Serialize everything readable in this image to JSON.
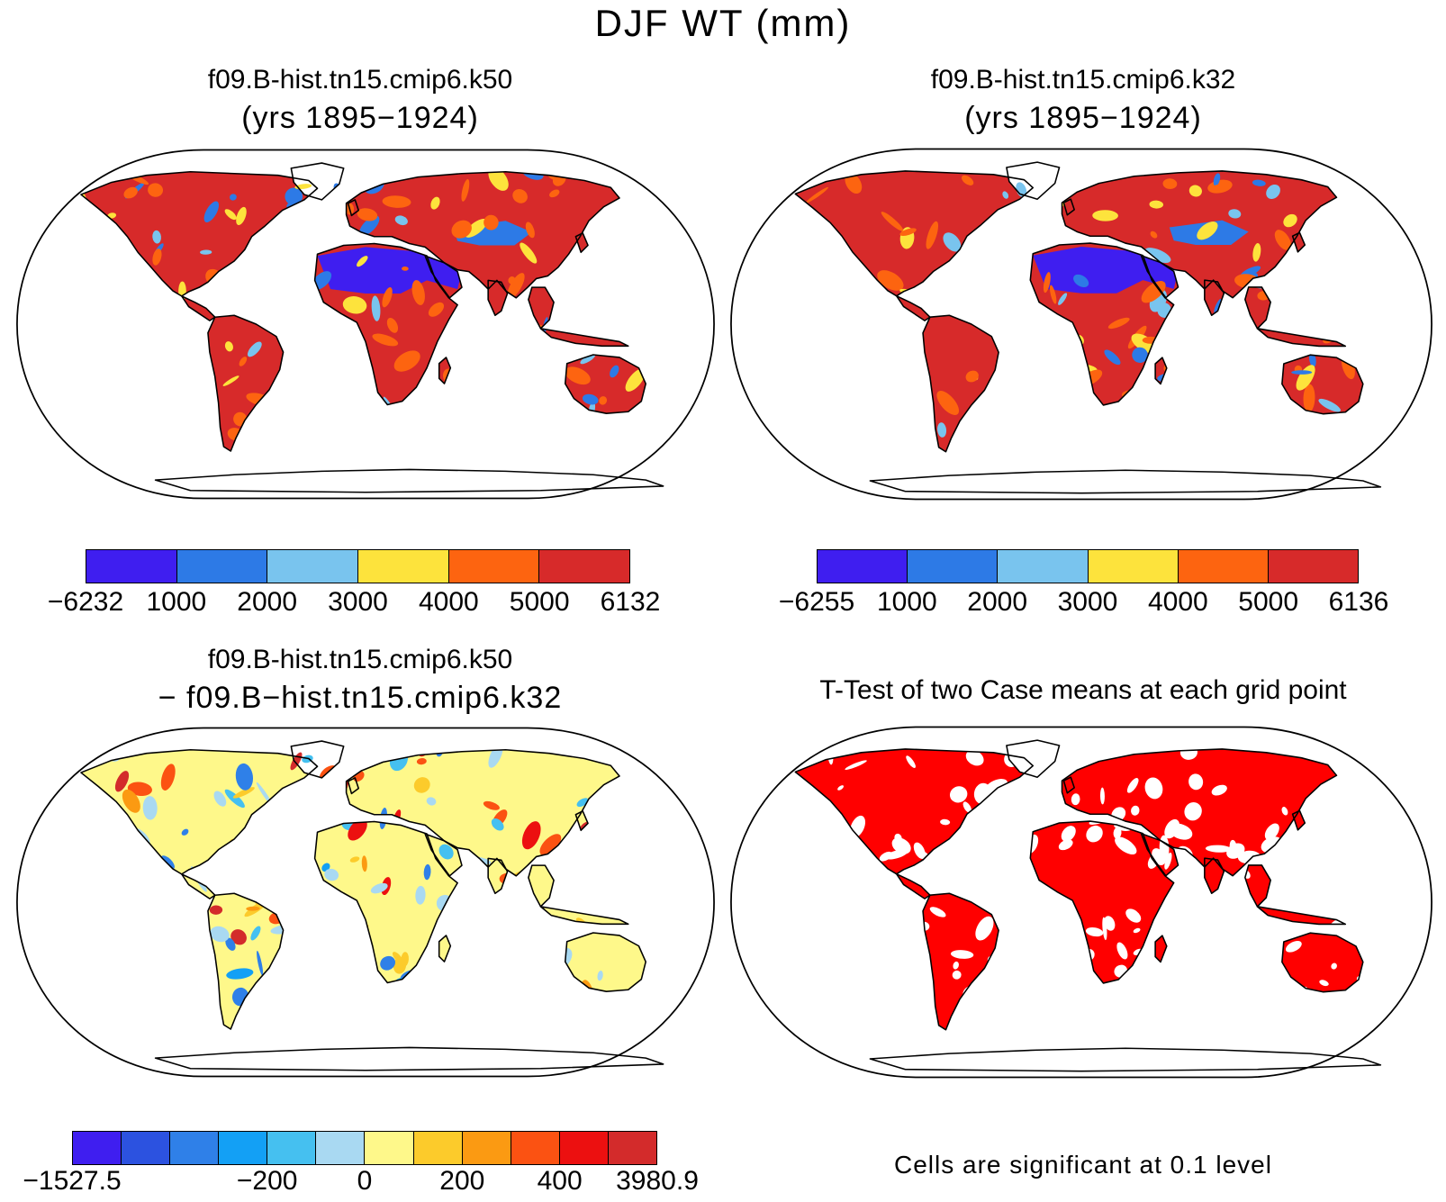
{
  "title": "DJF WT (mm)",
  "panels": [
    {
      "title": "f09.B-hist.tn15.cmip6.k50",
      "subtitle": "(yrs 1895−1924)",
      "colorbar": {
        "colors": [
          "#3f1ef0",
          "#2d7ae6",
          "#79c4ee",
          "#fde33c",
          "#fd6410",
          "#d72a2a"
        ],
        "labels": [
          "−6232",
          "1000",
          "2000",
          "3000",
          "4000",
          "5000",
          "6132"
        ]
      }
    },
    {
      "title": "f09.B-hist.tn15.cmip6.k32",
      "subtitle": "(yrs 1895−1924)",
      "colorbar": {
        "colors": [
          "#3f1ef0",
          "#2d7ae6",
          "#79c4ee",
          "#fde33c",
          "#fd6410",
          "#d72a2a"
        ],
        "labels": [
          "−6255",
          "1000",
          "2000",
          "3000",
          "4000",
          "5000",
          "6136"
        ]
      }
    },
    {
      "title": "f09.B-hist.tn15.cmip6.k50",
      "subtitle": "− f09.B−hist.tn15.cmip6.k32",
      "colorbar": {
        "colors": [
          "#3f1ef0",
          "#2c52e0",
          "#2f80e8",
          "#13a0f5",
          "#45c0f0",
          "#a9d9f2",
          "#fef88a",
          "#fccb2b",
          "#fb9a12",
          "#fb5212",
          "#ec1010",
          "#d32b2b"
        ],
        "labels": [
          "−1527.5",
          "−200",
          "0",
          "200",
          "400",
          "3980.9"
        ]
      }
    },
    {
      "title": "T-Test of two Case means at each grid point",
      "note": "Cells are significant at 0.1 level",
      "colors": {
        "significant": "#ff0000"
      }
    }
  ]
}
